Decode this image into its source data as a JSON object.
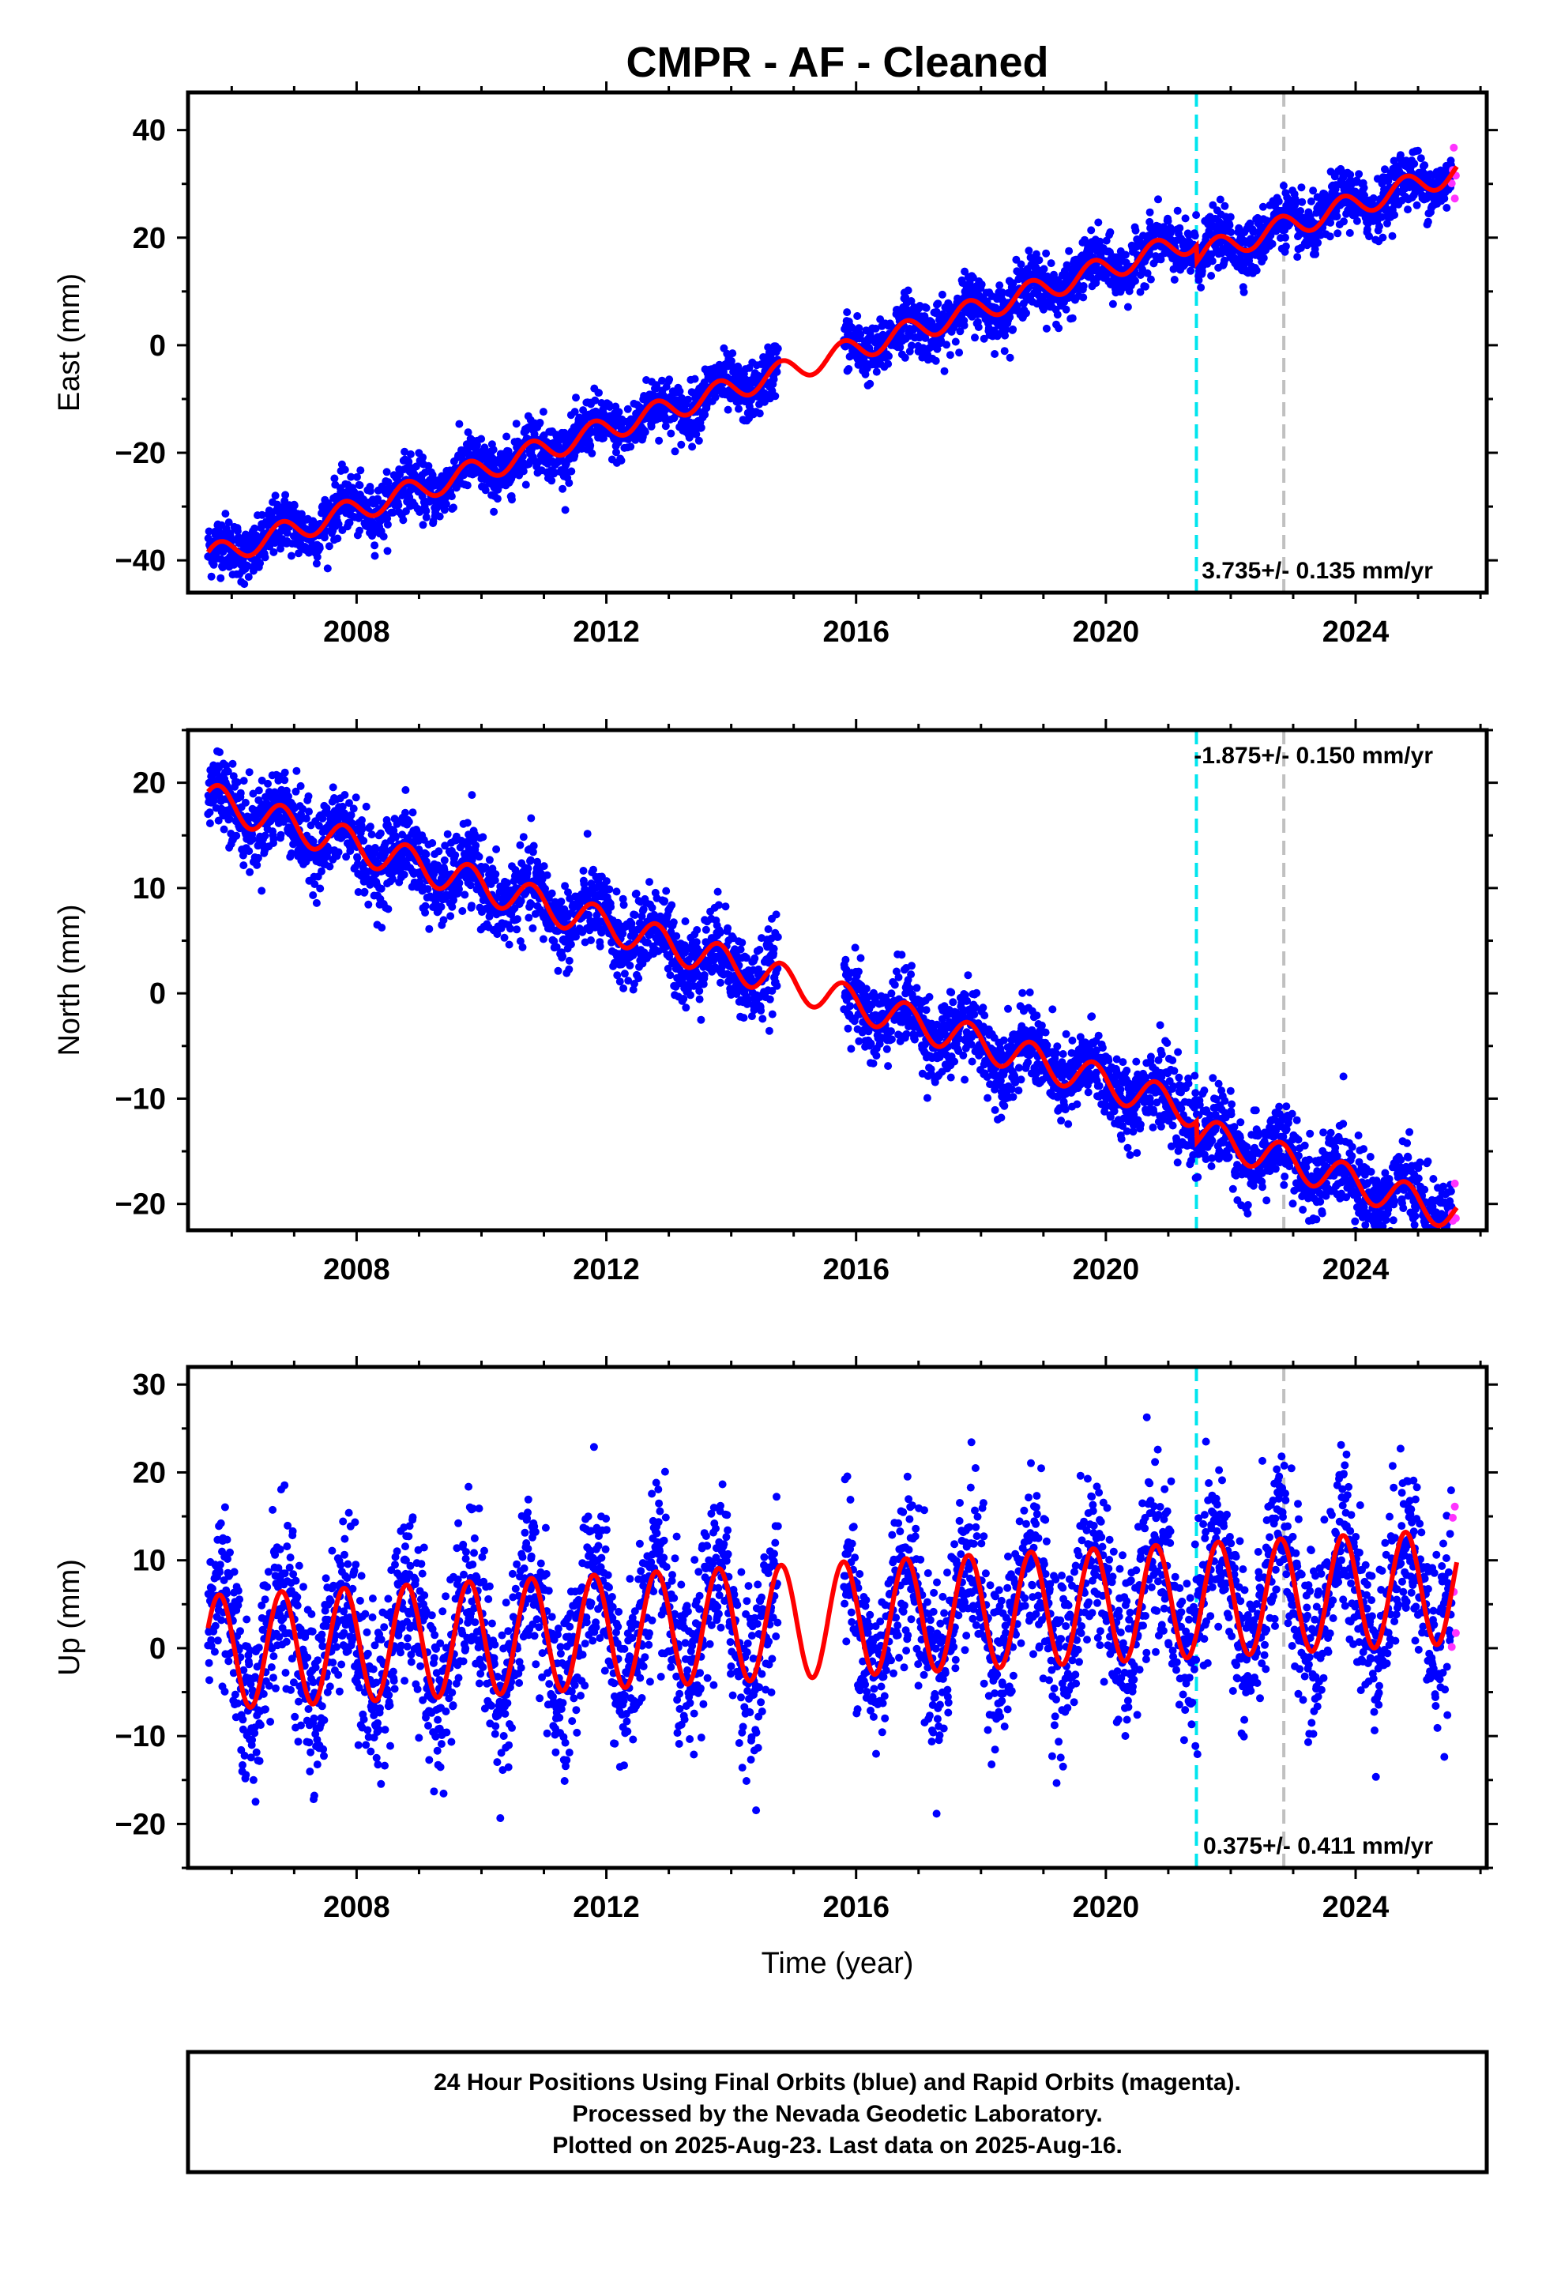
{
  "chart_data": {
    "type": "scatter",
    "title": "CMPR  - AF - Cleaned",
    "xlabel": "Time (year)",
    "xlim": [
      2005.3,
      2026.1
    ],
    "x_ticks": [
      2008,
      2012,
      2016,
      2020,
      2024
    ],
    "x_minor_step": 1,
    "grid": false,
    "event_lines": [
      {
        "x": 2021.45,
        "color": "#00e5ee",
        "style": "dashed"
      },
      {
        "x": 2022.85,
        "color": "#c0c0c0",
        "style": "dashed"
      }
    ],
    "data_gap": [
      2014.75,
      2015.8
    ],
    "data_end": 2025.62,
    "panels": [
      {
        "ylabel": "East (mm)",
        "ylim": [
          -46,
          47
        ],
        "y_ticks": [
          -40,
          -20,
          0,
          20,
          40
        ],
        "y_minor_step": 10,
        "rate_label": "3.735+/- 0.135 mm/yr",
        "rate_position": "bottom-right",
        "model": {
          "y0": -39.5,
          "t0": 2005.6,
          "rate": 3.735,
          "annual_amp": 2.2,
          "phase": 0.55,
          "offsets": [
            {
              "t": 2021.45,
              "dy": -3.0
            }
          ]
        },
        "noise": 2.6,
        "series": [
          {
            "name": "Final Orbits",
            "color": "#0000ff",
            "type": "scatter"
          },
          {
            "name": "Rapid Orbits",
            "color": "#ff33ff",
            "type": "scatter"
          },
          {
            "name": "Model",
            "color": "#ff0000",
            "type": "line"
          }
        ]
      },
      {
        "ylabel": "North (mm)",
        "ylim": [
          -22.5,
          25
        ],
        "y_ticks": [
          -20,
          -10,
          0,
          10,
          20
        ],
        "y_minor_step": 5,
        "rate_label": "-1.875+/- 0.150 mm/yr",
        "rate_position": "top-right",
        "model": {
          "y0": 18.5,
          "t0": 2005.6,
          "rate": -1.875,
          "annual_amp": 1.6,
          "phase": 0.55,
          "offsets": [
            {
              "t": 2021.45,
              "dy": -2.0
            }
          ]
        },
        "noise": 1.9,
        "series": [
          {
            "name": "Final Orbits",
            "color": "#0000ff",
            "type": "scatter"
          },
          {
            "name": "Rapid Orbits",
            "color": "#ff33ff",
            "type": "scatter"
          },
          {
            "name": "Model",
            "color": "#ff0000",
            "type": "line"
          }
        ]
      },
      {
        "ylabel": "Up (mm)",
        "ylim": [
          -25,
          32
        ],
        "y_ticks": [
          -20,
          -10,
          0,
          10,
          20,
          30
        ],
        "y_minor_step": 5,
        "rate_label": "0.375+/- 0.411 mm/yr",
        "rate_position": "bottom-right",
        "model": {
          "y0": -0.5,
          "t0": 2005.6,
          "rate": 0.375,
          "annual_amp": 6.5,
          "phase": 0.55,
          "offsets": []
        },
        "noise": 4.8,
        "series": [
          {
            "name": "Final Orbits",
            "color": "#0000ff",
            "type": "scatter"
          },
          {
            "name": "Rapid Orbits",
            "color": "#ff33ff",
            "type": "scatter"
          },
          {
            "name": "Model",
            "color": "#ff0000",
            "type": "line"
          }
        ]
      }
    ]
  },
  "footer": {
    "lines": [
      "24 Hour Positions Using Final Orbits (blue) and Rapid Orbits (magenta).",
      "Processed by the Nevada Geodetic Laboratory.",
      "Plotted on 2025-Aug-23. Last data on 2025-Aug-16."
    ]
  }
}
